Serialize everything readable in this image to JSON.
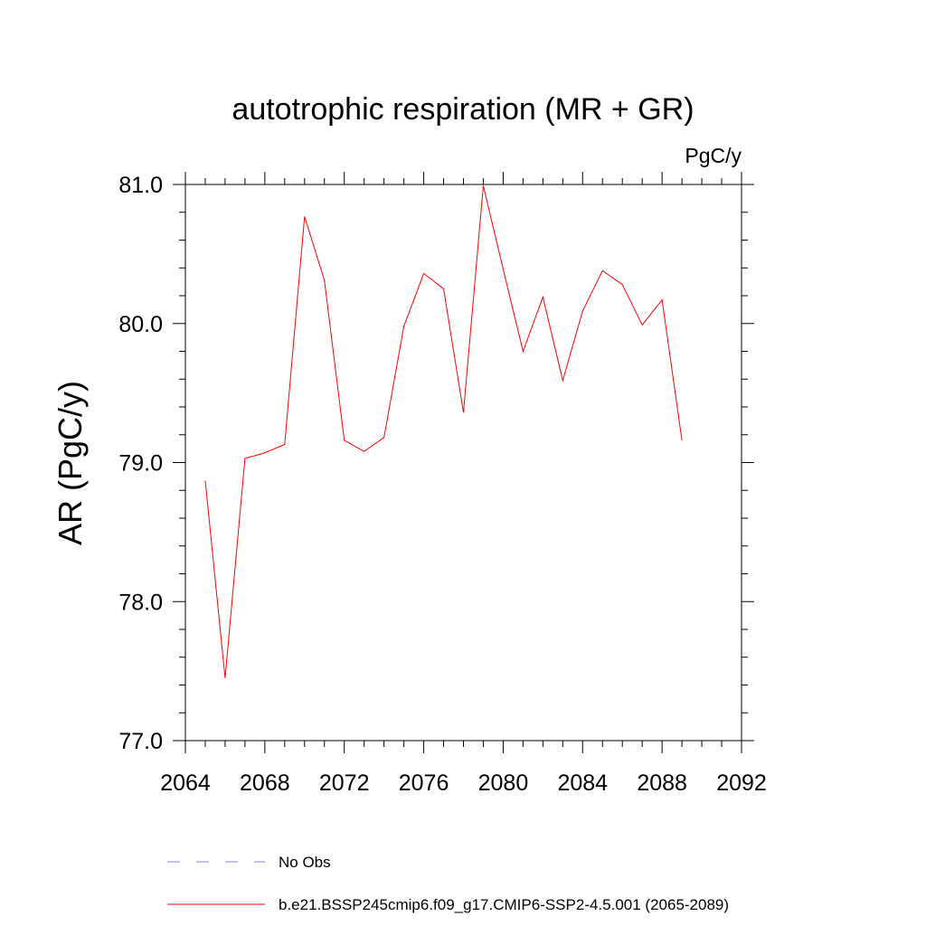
{
  "chart_data": {
    "type": "line",
    "title": "autotrophic respiration (MR + GR)",
    "units_label": "PgC/y",
    "xlabel": "",
    "ylabel": "AR  (PgC/y)",
    "xlim": [
      2064,
      2092
    ],
    "ylim": [
      77.0,
      81.0
    ],
    "x_ticks": [
      2064,
      2068,
      2072,
      2076,
      2080,
      2084,
      2088,
      2092
    ],
    "y_ticks": [
      "77.0",
      "78.0",
      "79.0",
      "80.0",
      "81.0"
    ],
    "series": [
      {
        "name": "b.e21.BSSP245cmip6.f09_g17.CMIP6-SSP2-4.5.001 (2065-2089)",
        "color": "#ff0000",
        "x": [
          2065,
          2066,
          2067,
          2068,
          2069,
          2070,
          2071,
          2072,
          2073,
          2074,
          2075,
          2076,
          2077,
          2078,
          2079,
          2080,
          2081,
          2082,
          2083,
          2084,
          2085,
          2086,
          2087,
          2088,
          2089
        ],
        "y": [
          78.87,
          77.45,
          79.03,
          79.07,
          79.13,
          80.77,
          80.31,
          79.16,
          79.08,
          79.18,
          79.98,
          80.36,
          80.25,
          79.36,
          80.99,
          80.39,
          79.8,
          80.19,
          79.59,
          80.09,
          80.38,
          80.28,
          79.99,
          80.17,
          79.16
        ]
      }
    ],
    "legend": [
      {
        "label": "No Obs",
        "color": "#7b7bd6",
        "style": "dashed"
      },
      {
        "label": "b.e21.BSSP245cmip6.f09_g17.CMIP6-SSP2-4.5.001 (2065-2089)",
        "color": "#ff0000",
        "style": "solid"
      }
    ]
  }
}
